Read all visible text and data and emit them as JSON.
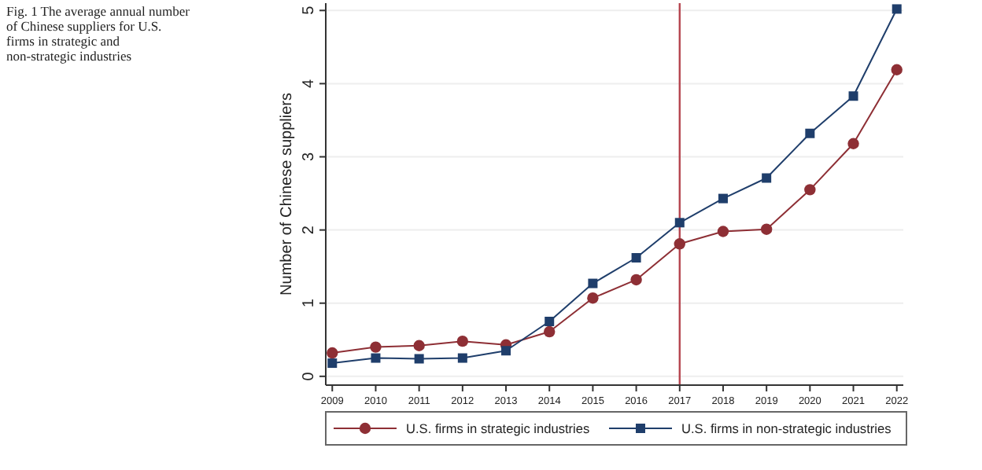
{
  "chart_data": {
    "type": "line",
    "title": "Fig. 1 The average annual number of Chinese suppliers for U.S. firms in strategic and non-strategic industries",
    "ylabel": "Number of Chinese suppliers",
    "x": [
      2009,
      2010,
      2011,
      2012,
      2013,
      2014,
      2015,
      2016,
      2017,
      2018,
      2019,
      2020,
      2021,
      2022
    ],
    "xlim": [
      2008.85,
      2022.15
    ],
    "xticks": [
      2009,
      2010,
      2011,
      2012,
      2013,
      2014,
      2015,
      2016,
      2017,
      2018,
      2019,
      2020,
      2021,
      2022
    ],
    "ylim": [
      -0.12,
      5.1
    ],
    "yticks": [
      0,
      1,
      2,
      3,
      4,
      5
    ],
    "grid": "y",
    "legend": "bottom",
    "ref_lines": [
      {
        "axis": "x",
        "value": 2017,
        "color": "#b5454f"
      }
    ],
    "series": [
      {
        "name": "U.S. firms in strategic industries",
        "color": "#8e2f35",
        "marker": "circle",
        "values": [
          0.32,
          0.4,
          0.42,
          0.48,
          0.43,
          0.61,
          1.07,
          1.32,
          1.81,
          1.98,
          2.01,
          2.55,
          3.18,
          4.19
        ]
      },
      {
        "name": "U.S. firms in non-strategic industries",
        "color": "#1f3e6b",
        "marker": "square",
        "values": [
          0.18,
          0.25,
          0.24,
          0.25,
          0.35,
          0.75,
          1.27,
          1.62,
          2.1,
          2.43,
          2.71,
          3.32,
          3.83,
          5.02
        ]
      }
    ]
  }
}
